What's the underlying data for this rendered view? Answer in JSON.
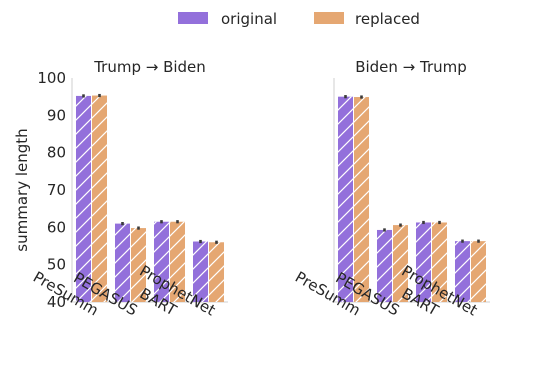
{
  "legend": {
    "items": [
      {
        "label": "original",
        "color": "#9370DB"
      },
      {
        "label": "replaced",
        "color": "#E5A772"
      }
    ],
    "placement": "top-center"
  },
  "chart_data": {
    "type": "bar",
    "ylabel": "summary length",
    "ylim": [
      40,
      100
    ],
    "yticks": [
      40,
      50,
      60,
      70,
      80,
      90,
      100
    ],
    "grid": false,
    "hatch": "diagonal",
    "categories": [
      "PreSumm",
      "PEGASUS",
      "BART",
      "ProphetNet"
    ],
    "panels": [
      {
        "title": "Trump → Biden",
        "series": [
          {
            "name": "original",
            "values": [
              95.2,
              61.0,
              61.5,
              56.2
            ]
          },
          {
            "name": "replaced",
            "values": [
              95.3,
              59.8,
              61.5,
              56.0
            ]
          }
        ]
      },
      {
        "title": "Biden → Trump",
        "series": [
          {
            "name": "original",
            "values": [
              95.0,
              59.3,
              61.3,
              56.3
            ]
          },
          {
            "name": "replaced",
            "values": [
              94.9,
              60.6,
              61.3,
              56.3
            ]
          }
        ]
      }
    ]
  }
}
